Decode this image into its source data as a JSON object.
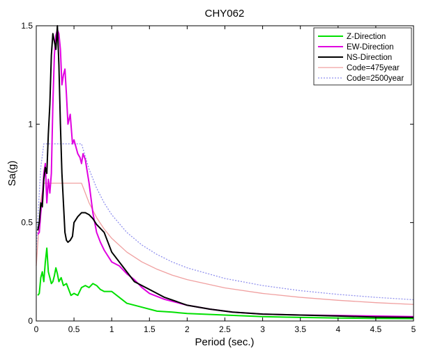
{
  "chart_data": {
    "type": "line",
    "title": "CHY062",
    "xlabel": "Period (sec.)",
    "ylabel": "Sa(g)",
    "xlim": [
      0,
      5
    ],
    "ylim": [
      0,
      1.5
    ],
    "xticks": [
      0,
      0.5,
      1,
      1.5,
      2,
      2.5,
      3,
      3.5,
      4,
      4.5,
      5
    ],
    "xtick_labels": [
      "0",
      "0.5",
      "1",
      "1.5",
      "2",
      "2.5",
      "3",
      "3.5",
      "4",
      "4.5",
      "5"
    ],
    "yticks": [
      0,
      0.5,
      1,
      1.5
    ],
    "ytick_labels": [
      "0",
      "0.5",
      "1",
      "1.5"
    ],
    "grid": false,
    "legend_position": "top-right",
    "series": [
      {
        "name": "Z-Direction",
        "color": "#00e000",
        "style": "solid",
        "points": [
          [
            0.02,
            0.13
          ],
          [
            0.04,
            0.14
          ],
          [
            0.06,
            0.22
          ],
          [
            0.08,
            0.25
          ],
          [
            0.1,
            0.2
          ],
          [
            0.12,
            0.3
          ],
          [
            0.14,
            0.37
          ],
          [
            0.16,
            0.25
          ],
          [
            0.18,
            0.22
          ],
          [
            0.2,
            0.19
          ],
          [
            0.22,
            0.2
          ],
          [
            0.24,
            0.23
          ],
          [
            0.26,
            0.27
          ],
          [
            0.28,
            0.24
          ],
          [
            0.3,
            0.2
          ],
          [
            0.33,
            0.22
          ],
          [
            0.36,
            0.18
          ],
          [
            0.4,
            0.19
          ],
          [
            0.43,
            0.16
          ],
          [
            0.46,
            0.13
          ],
          [
            0.5,
            0.14
          ],
          [
            0.55,
            0.13
          ],
          [
            0.6,
            0.17
          ],
          [
            0.65,
            0.18
          ],
          [
            0.7,
            0.17
          ],
          [
            0.75,
            0.19
          ],
          [
            0.8,
            0.18
          ],
          [
            0.85,
            0.16
          ],
          [
            0.9,
            0.15
          ],
          [
            1.0,
            0.15
          ],
          [
            1.1,
            0.12
          ],
          [
            1.2,
            0.09
          ],
          [
            1.4,
            0.07
          ],
          [
            1.6,
            0.05
          ],
          [
            1.8,
            0.045
          ],
          [
            2.0,
            0.038
          ],
          [
            2.5,
            0.03
          ],
          [
            3.0,
            0.022
          ],
          [
            3.5,
            0.018
          ],
          [
            4.0,
            0.015
          ],
          [
            4.5,
            0.013
          ],
          [
            5.0,
            0.012
          ]
        ]
      },
      {
        "name": "EW-Direction",
        "color": "#e000e0",
        "style": "solid",
        "points": [
          [
            0.02,
            0.44
          ],
          [
            0.04,
            0.45
          ],
          [
            0.06,
            0.55
          ],
          [
            0.08,
            0.62
          ],
          [
            0.1,
            0.75
          ],
          [
            0.12,
            0.8
          ],
          [
            0.14,
            0.6
          ],
          [
            0.16,
            0.72
          ],
          [
            0.18,
            0.65
          ],
          [
            0.2,
            0.75
          ],
          [
            0.22,
            1.1
          ],
          [
            0.24,
            1.35
          ],
          [
            0.26,
            1.45
          ],
          [
            0.28,
            1.48
          ],
          [
            0.3,
            1.46
          ],
          [
            0.32,
            1.38
          ],
          [
            0.34,
            1.2
          ],
          [
            0.36,
            1.25
          ],
          [
            0.38,
            1.28
          ],
          [
            0.4,
            1.15
          ],
          [
            0.42,
            1.0
          ],
          [
            0.45,
            1.05
          ],
          [
            0.48,
            0.9
          ],
          [
            0.5,
            0.92
          ],
          [
            0.55,
            0.85
          ],
          [
            0.58,
            0.83
          ],
          [
            0.6,
            0.8
          ],
          [
            0.62,
            0.85
          ],
          [
            0.65,
            0.82
          ],
          [
            0.7,
            0.7
          ],
          [
            0.75,
            0.55
          ],
          [
            0.8,
            0.45
          ],
          [
            0.85,
            0.4
          ],
          [
            0.9,
            0.36
          ],
          [
            1.0,
            0.3
          ],
          [
            1.1,
            0.28
          ],
          [
            1.2,
            0.24
          ],
          [
            1.3,
            0.21
          ],
          [
            1.4,
            0.17
          ],
          [
            1.5,
            0.14
          ],
          [
            1.7,
            0.11
          ],
          [
            2.0,
            0.08
          ],
          [
            2.3,
            0.06
          ],
          [
            2.6,
            0.045
          ],
          [
            3.0,
            0.035
          ],
          [
            3.5,
            0.03
          ],
          [
            4.0,
            0.028
          ],
          [
            4.5,
            0.025
          ],
          [
            5.0,
            0.022
          ]
        ]
      },
      {
        "name": "NS-Direction",
        "color": "#000000",
        "style": "solid",
        "points": [
          [
            0.02,
            0.46
          ],
          [
            0.04,
            0.5
          ],
          [
            0.06,
            0.6
          ],
          [
            0.08,
            0.58
          ],
          [
            0.1,
            0.72
          ],
          [
            0.12,
            0.78
          ],
          [
            0.14,
            0.75
          ],
          [
            0.16,
            0.95
          ],
          [
            0.18,
            1.1
          ],
          [
            0.2,
            1.35
          ],
          [
            0.22,
            1.46
          ],
          [
            0.24,
            1.42
          ],
          [
            0.26,
            1.38
          ],
          [
            0.28,
            1.5
          ],
          [
            0.3,
            1.3
          ],
          [
            0.32,
            1.0
          ],
          [
            0.34,
            0.75
          ],
          [
            0.36,
            0.6
          ],
          [
            0.38,
            0.45
          ],
          [
            0.4,
            0.41
          ],
          [
            0.42,
            0.4
          ],
          [
            0.45,
            0.41
          ],
          [
            0.48,
            0.43
          ],
          [
            0.5,
            0.5
          ],
          [
            0.55,
            0.53
          ],
          [
            0.6,
            0.55
          ],
          [
            0.65,
            0.55
          ],
          [
            0.7,
            0.54
          ],
          [
            0.75,
            0.52
          ],
          [
            0.8,
            0.49
          ],
          [
            0.9,
            0.45
          ],
          [
            1.0,
            0.35
          ],
          [
            1.1,
            0.3
          ],
          [
            1.2,
            0.25
          ],
          [
            1.3,
            0.2
          ],
          [
            1.4,
            0.18
          ],
          [
            1.5,
            0.16
          ],
          [
            1.7,
            0.12
          ],
          [
            2.0,
            0.08
          ],
          [
            2.3,
            0.06
          ],
          [
            2.6,
            0.045
          ],
          [
            3.0,
            0.035
          ],
          [
            3.5,
            0.03
          ],
          [
            4.0,
            0.025
          ],
          [
            4.5,
            0.02
          ],
          [
            5.0,
            0.018
          ]
        ]
      },
      {
        "name": "Code=475year",
        "color": "#f0a0a0",
        "style": "solid",
        "points": [
          [
            0.0,
            0.28
          ],
          [
            0.03,
            0.45
          ],
          [
            0.06,
            0.61
          ],
          [
            0.1,
            0.7
          ],
          [
            0.2,
            0.7
          ],
          [
            0.3,
            0.7
          ],
          [
            0.4,
            0.7
          ],
          [
            0.5,
            0.7
          ],
          [
            0.6,
            0.7
          ],
          [
            0.7,
            0.6
          ],
          [
            0.8,
            0.525
          ],
          [
            0.9,
            0.467
          ],
          [
            1.0,
            0.42
          ],
          [
            1.2,
            0.35
          ],
          [
            1.4,
            0.3
          ],
          [
            1.6,
            0.263
          ],
          [
            1.8,
            0.233
          ],
          [
            2.0,
            0.21
          ],
          [
            2.5,
            0.168
          ],
          [
            3.0,
            0.14
          ],
          [
            3.5,
            0.12
          ],
          [
            4.0,
            0.105
          ],
          [
            4.5,
            0.093
          ],
          [
            5.0,
            0.084
          ]
        ]
      },
      {
        "name": "Code=2500year",
        "color": "#9090ee",
        "style": "dotted",
        "points": [
          [
            0.0,
            0.36
          ],
          [
            0.03,
            0.58
          ],
          [
            0.06,
            0.78
          ],
          [
            0.1,
            0.9
          ],
          [
            0.2,
            0.9
          ],
          [
            0.3,
            0.9
          ],
          [
            0.4,
            0.9
          ],
          [
            0.5,
            0.9
          ],
          [
            0.6,
            0.9
          ],
          [
            0.7,
            0.771
          ],
          [
            0.8,
            0.675
          ],
          [
            0.9,
            0.6
          ],
          [
            1.0,
            0.54
          ],
          [
            1.2,
            0.45
          ],
          [
            1.4,
            0.386
          ],
          [
            1.6,
            0.338
          ],
          [
            1.8,
            0.3
          ],
          [
            2.0,
            0.27
          ],
          [
            2.5,
            0.216
          ],
          [
            3.0,
            0.18
          ],
          [
            3.5,
            0.154
          ],
          [
            4.0,
            0.135
          ],
          [
            4.5,
            0.12
          ],
          [
            5.0,
            0.108
          ]
        ]
      }
    ]
  }
}
